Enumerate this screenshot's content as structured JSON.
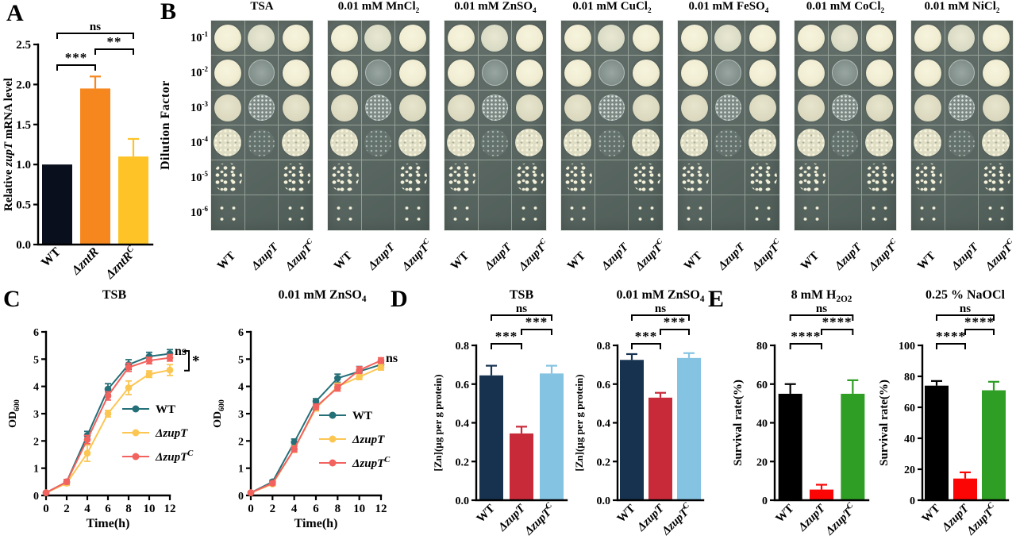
{
  "panel_labels": {
    "A": "A",
    "B": "B",
    "C": "C",
    "D": "D",
    "E": "E"
  },
  "panel_b": {
    "axis_label": "Dilution Factor",
    "dilutions": [
      "10^-1",
      "10^-2",
      "10^-3",
      "10^-4",
      "10^-5",
      "10^-6"
    ],
    "strains": [
      "WT",
      "ΔzupT",
      "ΔzupT^C"
    ],
    "conditions": [
      "TSA",
      "0.01 mM MnCl_2",
      "0.01 mM ZnSO_4",
      "0.01 mM CuCl_2",
      "0.01 mM FeSO_4",
      "0.01 mM CoCl_2",
      "0.01 mM NiCl_2"
    ],
    "growth_patterns": {
      "wild": [
        "solid",
        "solid",
        "pale",
        "speckled",
        "colonies",
        "dots"
      ],
      "mutant": [
        "dull",
        "ghost",
        "ghostspeck",
        "faint",
        "none",
        "none"
      ],
      "complement": [
        "solid",
        "solid",
        "pale",
        "speckled",
        "colonies",
        "dots"
      ]
    },
    "colors": {
      "agar": "#5a6762",
      "colony": "#f2efd8"
    }
  },
  "chart_data": [
    {
      "id": "A",
      "type": "bar",
      "title": "",
      "ylabel": "Relative *zupT* mRNA level",
      "categories": [
        "WT",
        "ΔzntR",
        "ΔzntR^C"
      ],
      "values": [
        1.0,
        1.95,
        1.1
      ],
      "errors": [
        0,
        0.15,
        0.22
      ],
      "bar_colors": [
        "#0a0f1e",
        "#f6871f",
        "#fdc327"
      ],
      "ylim": [
        0,
        2.5
      ],
      "yticks": [
        "0.0",
        "0.5",
        "1.0",
        "1.5",
        "2.0",
        "2.5"
      ],
      "significance": [
        {
          "groups": [
            0,
            1
          ],
          "label": "***"
        },
        {
          "groups": [
            1,
            2
          ],
          "label": "**"
        },
        {
          "groups": [
            0,
            2
          ],
          "label": "ns"
        }
      ]
    },
    {
      "id": "C1",
      "type": "line",
      "title": "TSB",
      "xlabel": "Time(h)",
      "ylabel": "OD_600",
      "x": [
        0,
        2,
        4,
        6,
        8,
        10,
        12
      ],
      "xlim": [
        0,
        12
      ],
      "ylim": [
        0,
        6
      ],
      "xticks": [
        "0",
        "2",
        "4",
        "6",
        "8",
        "10",
        "12"
      ],
      "yticks": [
        "0",
        "1",
        "2",
        "3",
        "4",
        "5",
        "6"
      ],
      "series": [
        {
          "name": "WT",
          "color": "#256f78",
          "values": [
            0.1,
            0.5,
            2.2,
            3.9,
            4.8,
            5.1,
            5.2
          ],
          "errors": [
            0.04,
            0.08,
            0.15,
            0.2,
            0.18,
            0.15,
            0.15
          ]
        },
        {
          "name": "ΔzupT",
          "color": "#fcc653",
          "values": [
            0.1,
            0.45,
            1.55,
            3.0,
            3.95,
            4.45,
            4.6
          ],
          "errors": [
            0.04,
            0.08,
            0.3,
            0.12,
            0.25,
            0.12,
            0.2
          ]
        },
        {
          "name": "ΔzupT^C",
          "color": "#f2625e",
          "values": [
            0.1,
            0.5,
            2.05,
            3.65,
            4.7,
            4.95,
            5.05
          ],
          "errors": [
            0.04,
            0.08,
            0.15,
            0.15,
            0.15,
            0.12,
            0.12
          ]
        }
      ],
      "legend_position": "inside-right",
      "annotations": [
        {
          "type": "text",
          "label": "ns",
          "x": 12,
          "y": 5.15
        },
        {
          "type": "right-bracket",
          "label": "*",
          "y1": 5.3,
          "y2": 4.58
        }
      ]
    },
    {
      "id": "C2",
      "type": "line",
      "title": "0.01 mM ZnSO_4",
      "xlabel": "Time(h)",
      "ylabel": "OD_600",
      "x": [
        0,
        2,
        4,
        6,
        8,
        10,
        12
      ],
      "xlim": [
        0,
        12
      ],
      "ylim": [
        0,
        6
      ],
      "xticks": [
        "0",
        "2",
        "4",
        "6",
        "8",
        "10",
        "12"
      ],
      "yticks": [
        "0",
        "1",
        "2",
        "3",
        "4",
        "5",
        "6"
      ],
      "series": [
        {
          "name": "WT",
          "color": "#256f78",
          "values": [
            0.1,
            0.5,
            1.95,
            3.45,
            4.3,
            4.55,
            4.8
          ],
          "errors": [
            0.04,
            0.06,
            0.12,
            0.1,
            0.15,
            0.18,
            0.1
          ]
        },
        {
          "name": "ΔzupT",
          "color": "#fcc653",
          "values": [
            0.1,
            0.42,
            1.7,
            3.2,
            4.0,
            4.35,
            4.7
          ],
          "errors": [
            0.04,
            0.06,
            0.12,
            0.1,
            0.12,
            0.1,
            0.1
          ]
        },
        {
          "name": "ΔzupT^C",
          "color": "#f2625e",
          "values": [
            0.1,
            0.45,
            1.7,
            3.25,
            3.95,
            4.6,
            4.95
          ],
          "errors": [
            0.04,
            0.06,
            0.1,
            0.1,
            0.12,
            0.12,
            0.1
          ]
        }
      ],
      "legend_position": "inside-right",
      "annotations": [
        {
          "type": "text",
          "label": "ns",
          "x": 12,
          "y": 4.9
        }
      ]
    },
    {
      "id": "D1",
      "type": "bar",
      "title": "TSB",
      "ylabel": "[Zn](µg per g protein)",
      "categories": [
        "WT",
        "ΔzupT",
        "ΔzupT^C"
      ],
      "values": [
        0.645,
        0.345,
        0.655
      ],
      "errors": [
        0.05,
        0.035,
        0.04
      ],
      "bar_colors": [
        "#16324f",
        "#c92a39",
        "#85c3e2"
      ],
      "ylim": [
        0,
        0.8
      ],
      "yticks": [
        "0.0",
        "0.2",
        "0.4",
        "0.6",
        "0.8"
      ],
      "significance": [
        {
          "groups": [
            0,
            1
          ],
          "label": "***"
        },
        {
          "groups": [
            1,
            2
          ],
          "label": "***"
        },
        {
          "groups": [
            0,
            2
          ],
          "label": "ns"
        }
      ]
    },
    {
      "id": "D2",
      "type": "bar",
      "title": "0.01 mM ZnSO_4",
      "ylabel": "[Zn](µg per g protein)",
      "categories": [
        "WT",
        "ΔzupT",
        "ΔzupT^C"
      ],
      "values": [
        0.725,
        0.53,
        0.735
      ],
      "errors": [
        0.03,
        0.025,
        0.025
      ],
      "bar_colors": [
        "#16324f",
        "#c92a39",
        "#85c3e2"
      ],
      "ylim": [
        0,
        0.8
      ],
      "yticks": [
        "0.0",
        "0.2",
        "0.4",
        "0.6",
        "0.8"
      ],
      "significance": [
        {
          "groups": [
            0,
            1
          ],
          "label": "***"
        },
        {
          "groups": [
            1,
            2
          ],
          "label": "***"
        },
        {
          "groups": [
            0,
            2
          ],
          "label": "ns"
        }
      ]
    },
    {
      "id": "E1",
      "type": "bar",
      "title": "8 mM H_2O_2",
      "ylabel": "Survival rate(%)",
      "categories": [
        "WT",
        "ΔzupT",
        "ΔzupT^C"
      ],
      "values": [
        55,
        5.5,
        55
      ],
      "errors": [
        5,
        2.5,
        7
      ],
      "bar_colors": [
        "#000000",
        "#fb0505",
        "#2f9e24"
      ],
      "ylim": [
        0,
        80
      ],
      "yticks": [
        "0",
        "20",
        "40",
        "60",
        "80"
      ],
      "significance": [
        {
          "groups": [
            0,
            1
          ],
          "label": "****"
        },
        {
          "groups": [
            1,
            2
          ],
          "label": "****"
        },
        {
          "groups": [
            0,
            2
          ],
          "label": "ns"
        }
      ]
    },
    {
      "id": "E2",
      "type": "bar",
      "title": "0.25 % NaOCl",
      "ylabel": "Survival rate(%)",
      "categories": [
        "WT",
        "ΔzupT",
        "ΔzupT^C"
      ],
      "values": [
        74,
        14,
        71
      ],
      "errors": [
        3,
        4,
        5.5
      ],
      "bar_colors": [
        "#000000",
        "#fb0505",
        "#2f9e24"
      ],
      "ylim": [
        0,
        100
      ],
      "yticks": [
        "0",
        "20",
        "40",
        "60",
        "80",
        "100"
      ],
      "significance": [
        {
          "groups": [
            0,
            1
          ],
          "label": "****"
        },
        {
          "groups": [
            1,
            2
          ],
          "label": "****"
        },
        {
          "groups": [
            0,
            2
          ],
          "label": "ns"
        }
      ]
    }
  ]
}
